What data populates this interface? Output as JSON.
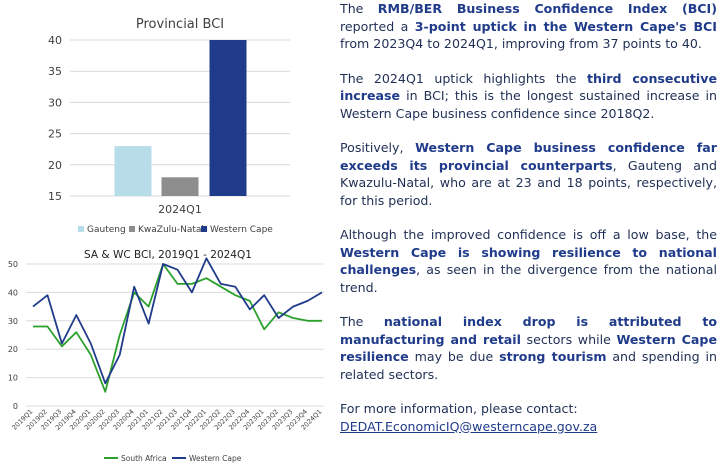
{
  "chart_data": [
    {
      "type": "bar",
      "title": "Provincial BCI",
      "xlabel": "2024Q1",
      "categories": [
        "Gauteng",
        "KwaZulu-Natal",
        "Western Cape"
      ],
      "values": [
        23,
        18,
        40
      ],
      "ylim": [
        15,
        40
      ],
      "yticks": [
        "15",
        "20",
        "25",
        "30",
        "35",
        "40"
      ],
      "colors": [
        "#b6dde8",
        "#8e8e8e",
        "#1f3b8a"
      ],
      "grid": true,
      "legend": "bottom"
    },
    {
      "type": "line",
      "title": "SA & WC BCI, 2019Q1 - 2024Q1",
      "x": [
        "2019Q1",
        "2019Q2",
        "2019Q3",
        "2019Q4",
        "2020Q1",
        "2020Q2",
        "2020Q3",
        "2020Q4",
        "2021Q1",
        "2021Q2",
        "2021Q3",
        "2021Q4",
        "2022Q1",
        "2022Q2",
        "2022Q3",
        "2022Q4",
        "2023Q1",
        "2023Q2",
        "2023Q3",
        "2023Q4",
        "2024Q1"
      ],
      "series": [
        {
          "name": "South Africa",
          "color": "#2ca02c",
          "values": [
            28,
            28,
            21,
            26,
            18,
            5,
            25,
            40,
            35,
            50,
            43,
            43,
            45,
            42,
            39,
            37,
            27,
            33,
            31,
            30,
            30
          ]
        },
        {
          "name": "Western Cape",
          "color": "#1f3b8a",
          "values": [
            35,
            39,
            22,
            32,
            22,
            8,
            18,
            42,
            29,
            50,
            48,
            40,
            52,
            43,
            42,
            34,
            39,
            31,
            35,
            37,
            40
          ]
        }
      ],
      "ylim": [
        0,
        50
      ],
      "yticks": [
        "0",
        "10",
        "20",
        "30",
        "40",
        "50"
      ],
      "grid": true,
      "legend": "bottom"
    }
  ],
  "text": {
    "p1": [
      {
        "t": "The ",
        "b": false
      },
      {
        "t": "RMB/BER Business Confidence Index (BCI)",
        "b": true
      },
      {
        "t": " reported a ",
        "b": false
      },
      {
        "t": "3-point uptick in the Western Cape's BCI",
        "b": true
      },
      {
        "t": " from 2023Q4 to 2024Q1, improving from 37 points to 40.",
        "b": false
      }
    ],
    "p2": [
      {
        "t": "The 2024Q1 uptick highlights the ",
        "b": false
      },
      {
        "t": "third consecutive increase",
        "b": true
      },
      {
        "t": " in BCI; this is the longest sustained increase in Western Cape business confidence since 2018Q2.",
        "b": false
      }
    ],
    "p3": [
      {
        "t": "Positively, ",
        "b": false
      },
      {
        "t": "Western Cape business confidence far exceeds its provincial counterparts",
        "b": true
      },
      {
        "t": ", Gauteng and Kwazulu-Natal, who are at 23 and 18 points, respectively, for this period.",
        "b": false
      }
    ],
    "p4": [
      {
        "t": "Although the improved confidence is off a low base, the ",
        "b": false
      },
      {
        "t": "Western Cape is showing resilience to national challenges",
        "b": true
      },
      {
        "t": ", as seen in the divergence from the national trend.",
        "b": false
      }
    ],
    "p5": [
      {
        "t": "The ",
        "b": false
      },
      {
        "t": "national index drop is attributed to manufacturing and retail",
        "b": true
      },
      {
        "t": " sectors while ",
        "b": false
      },
      {
        "t": "Western Cape resilience",
        "b": true
      },
      {
        "t": " may be due ",
        "b": false
      },
      {
        "t": "strong tourism",
        "b": true
      },
      {
        "t": " and spending in related sectors.",
        "b": false
      }
    ],
    "contact": "For more information, please contact:",
    "email": "DEDAT.EconomicIQ@westerncape.gov.za"
  }
}
